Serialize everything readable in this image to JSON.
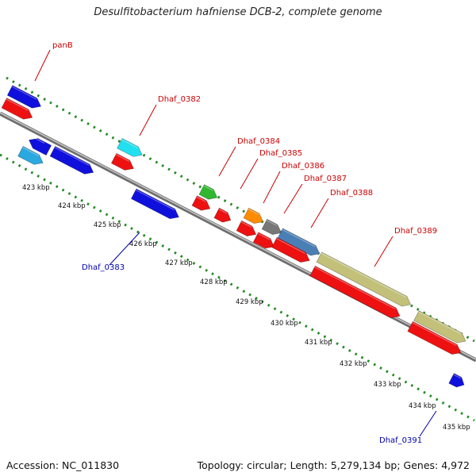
{
  "title": "Desulfitobacterium hafniense DCB-2, complete genome",
  "footer": {
    "accession": "Accession: NC_011830",
    "summary": "Topology: circular; Length: 5,279,134 bp; Genes: 4,972"
  },
  "colors": {
    "forward_label": "#cc0000",
    "reverse_label": "#0000aa",
    "ruler": "#228b22",
    "backbone": "#888888"
  },
  "ticks": [
    "423 kbp",
    "424 kbp",
    "425 kbp",
    "426 kbp",
    "427 kbp",
    "428 kbp",
    "429 kbp",
    "430 kbp",
    "431 kbp",
    "432 kbp",
    "433 kbp",
    "434 kbp",
    "435 kbp"
  ],
  "gene_labels": [
    {
      "name": "panB",
      "strand": "forward"
    },
    {
      "name": "Dhaf_0382",
      "strand": "forward"
    },
    {
      "name": "Dhaf_0384",
      "strand": "forward"
    },
    {
      "name": "Dhaf_0385",
      "strand": "forward"
    },
    {
      "name": "Dhaf_0386",
      "strand": "forward"
    },
    {
      "name": "Dhaf_0387",
      "strand": "forward"
    },
    {
      "name": "Dhaf_0388",
      "strand": "forward"
    },
    {
      "name": "Dhaf_0389",
      "strand": "forward"
    },
    {
      "name": "Dhaf_0383",
      "strand": "reverse"
    },
    {
      "name": "Dhaf_0391",
      "strand": "reverse"
    }
  ]
}
